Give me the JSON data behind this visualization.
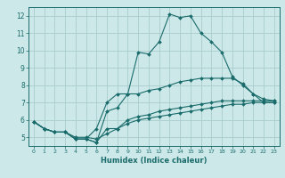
{
  "title": "",
  "xlabel": "Humidex (Indice chaleur)",
  "ylabel": "",
  "background_color": "#cce8e8",
  "grid_color": "#aacccc",
  "line_color": "#1a6b6b",
  "xlim": [
    -0.5,
    23.5
  ],
  "ylim": [
    4.5,
    12.5
  ],
  "xticks": [
    0,
    1,
    2,
    3,
    4,
    5,
    6,
    7,
    8,
    9,
    10,
    11,
    12,
    13,
    14,
    15,
    16,
    17,
    18,
    19,
    20,
    21,
    22,
    23
  ],
  "yticks": [
    5,
    6,
    7,
    8,
    9,
    10,
    11,
    12
  ],
  "lines": [
    {
      "x": [
        0,
        1,
        2,
        3,
        4,
        5,
        6,
        7,
        8,
        9,
        10,
        11,
        12,
        13,
        14,
        15,
        16,
        17,
        18,
        19,
        20,
        21,
        22,
        23
      ],
      "y": [
        5.9,
        5.5,
        5.3,
        5.3,
        4.9,
        4.9,
        4.7,
        6.5,
        6.7,
        7.5,
        9.9,
        9.8,
        10.5,
        12.1,
        11.9,
        12.0,
        11.0,
        10.5,
        9.9,
        8.5,
        8.0,
        7.5,
        7.0,
        7.0
      ]
    },
    {
      "x": [
        0,
        1,
        2,
        3,
        4,
        5,
        6,
        7,
        8,
        9,
        10,
        11,
        12,
        13,
        14,
        15,
        16,
        17,
        18,
        19,
        20,
        21,
        22,
        23
      ],
      "y": [
        5.9,
        5.5,
        5.3,
        5.3,
        4.9,
        4.9,
        5.5,
        7.0,
        7.5,
        7.5,
        7.5,
        7.7,
        7.8,
        8.0,
        8.2,
        8.3,
        8.4,
        8.4,
        8.4,
        8.4,
        8.1,
        7.5,
        7.2,
        7.1
      ]
    },
    {
      "x": [
        0,
        1,
        2,
        3,
        4,
        5,
        6,
        7,
        8,
        9,
        10,
        11,
        12,
        13,
        14,
        15,
        16,
        17,
        18,
        19,
        20,
        21,
        22,
        23
      ],
      "y": [
        5.9,
        5.5,
        5.3,
        5.3,
        4.9,
        4.9,
        4.7,
        5.5,
        5.5,
        6.0,
        6.2,
        6.3,
        6.5,
        6.6,
        6.7,
        6.8,
        6.9,
        7.0,
        7.1,
        7.1,
        7.1,
        7.1,
        7.1,
        7.1
      ]
    },
    {
      "x": [
        0,
        1,
        2,
        3,
        4,
        5,
        6,
        7,
        8,
        9,
        10,
        11,
        12,
        13,
        14,
        15,
        16,
        17,
        18,
        19,
        20,
        21,
        22,
        23
      ],
      "y": [
        5.9,
        5.5,
        5.3,
        5.3,
        5.0,
        5.0,
        4.9,
        5.2,
        5.5,
        5.8,
        6.0,
        6.1,
        6.2,
        6.3,
        6.4,
        6.5,
        6.6,
        6.7,
        6.8,
        6.9,
        6.9,
        7.0,
        7.0,
        7.0
      ]
    }
  ]
}
